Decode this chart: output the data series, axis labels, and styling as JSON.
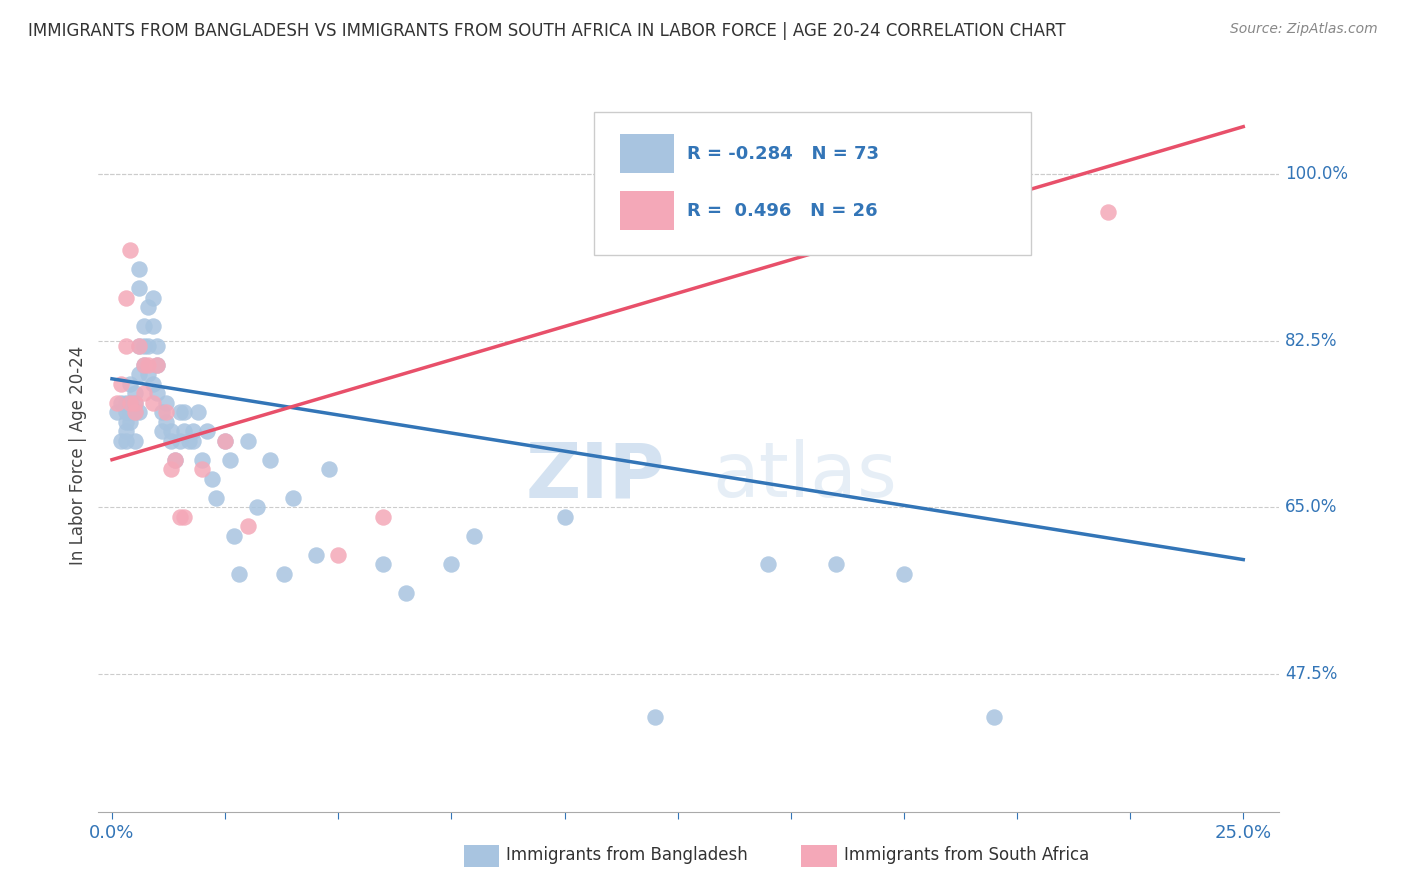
{
  "title": "IMMIGRANTS FROM BANGLADESH VS IMMIGRANTS FROM SOUTH AFRICA IN LABOR FORCE | AGE 20-24 CORRELATION CHART",
  "source": "Source: ZipAtlas.com",
  "ylabel": "In Labor Force | Age 20-24",
  "y_tick_labels": [
    "100.0%",
    "82.5%",
    "65.0%",
    "47.5%"
  ],
  "y_tick_values": [
    1.0,
    0.825,
    0.65,
    0.475
  ],
  "legend_blue_r": "R = -0.284",
  "legend_blue_n": "N = 73",
  "legend_pink_r": "R =  0.496",
  "legend_pink_n": "N = 26",
  "blue_color": "#a8c4e0",
  "pink_color": "#f4a8b8",
  "blue_line_color": "#3375b7",
  "pink_line_color": "#e8506a",
  "legend_text_color": "#3375b7",
  "watermark_zip": "ZIP",
  "watermark_atlas": "atlas",
  "title_color": "#333333",
  "bangladesh_x": [
    0.001,
    0.002,
    0.002,
    0.003,
    0.003,
    0.003,
    0.003,
    0.003,
    0.004,
    0.004,
    0.004,
    0.004,
    0.005,
    0.005,
    0.005,
    0.005,
    0.006,
    0.006,
    0.006,
    0.006,
    0.006,
    0.007,
    0.007,
    0.007,
    0.008,
    0.008,
    0.008,
    0.009,
    0.009,
    0.009,
    0.01,
    0.01,
    0.01,
    0.011,
    0.011,
    0.012,
    0.012,
    0.013,
    0.013,
    0.014,
    0.015,
    0.015,
    0.016,
    0.016,
    0.017,
    0.018,
    0.018,
    0.019,
    0.02,
    0.021,
    0.022,
    0.023,
    0.025,
    0.026,
    0.027,
    0.028,
    0.03,
    0.032,
    0.035,
    0.038,
    0.04,
    0.045,
    0.048,
    0.06,
    0.065,
    0.075,
    0.08,
    0.1,
    0.12,
    0.145,
    0.16,
    0.175,
    0.195
  ],
  "bangladesh_y": [
    0.75,
    0.76,
    0.72,
    0.74,
    0.76,
    0.75,
    0.73,
    0.72,
    0.78,
    0.76,
    0.75,
    0.74,
    0.77,
    0.76,
    0.75,
    0.72,
    0.9,
    0.88,
    0.82,
    0.79,
    0.75,
    0.84,
    0.82,
    0.8,
    0.86,
    0.82,
    0.79,
    0.87,
    0.84,
    0.78,
    0.82,
    0.8,
    0.77,
    0.75,
    0.73,
    0.76,
    0.74,
    0.73,
    0.72,
    0.7,
    0.75,
    0.72,
    0.75,
    0.73,
    0.72,
    0.73,
    0.72,
    0.75,
    0.7,
    0.73,
    0.68,
    0.66,
    0.72,
    0.7,
    0.62,
    0.58,
    0.72,
    0.65,
    0.7,
    0.58,
    0.66,
    0.6,
    0.69,
    0.59,
    0.56,
    0.59,
    0.62,
    0.64,
    0.43,
    0.59,
    0.59,
    0.58,
    0.43
  ],
  "south_africa_x": [
    0.001,
    0.002,
    0.003,
    0.003,
    0.004,
    0.004,
    0.005,
    0.005,
    0.006,
    0.007,
    0.007,
    0.008,
    0.009,
    0.01,
    0.012,
    0.013,
    0.014,
    0.015,
    0.016,
    0.02,
    0.025,
    0.03,
    0.05,
    0.06,
    0.19,
    0.22
  ],
  "south_africa_y": [
    0.76,
    0.78,
    0.87,
    0.82,
    0.92,
    0.76,
    0.76,
    0.75,
    0.82,
    0.8,
    0.77,
    0.8,
    0.76,
    0.8,
    0.75,
    0.69,
    0.7,
    0.64,
    0.64,
    0.69,
    0.72,
    0.63,
    0.6,
    0.64,
    1.0,
    0.96
  ],
  "blue_trend_x0": 0.0,
  "blue_trend_x1": 0.25,
  "blue_trend_y0": 0.785,
  "blue_trend_y1": 0.595,
  "pink_trend_x0": 0.0,
  "pink_trend_x1": 0.25,
  "pink_trend_y0": 0.7,
  "pink_trend_y1": 1.05,
  "xlim_min": -0.003,
  "xlim_max": 0.258,
  "ylim_min": 0.33,
  "ylim_max": 1.08
}
